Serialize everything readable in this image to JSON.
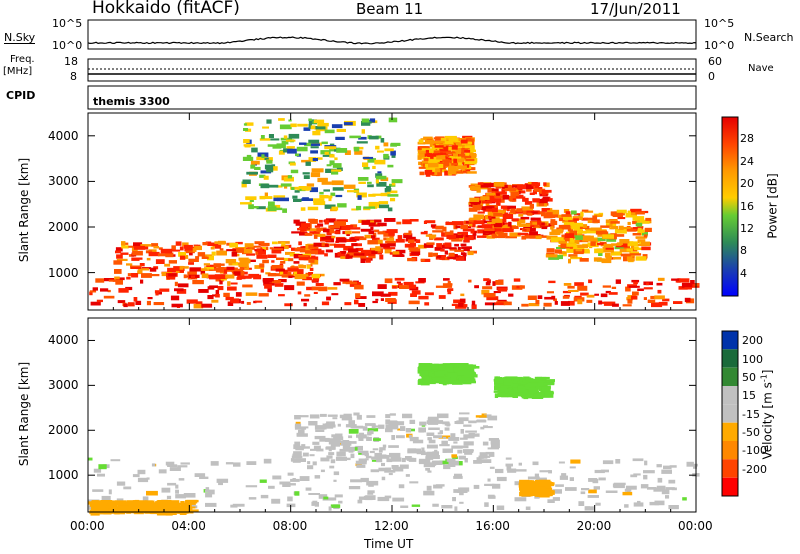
{
  "header": {
    "station": "Hokkaido (fitACF)",
    "beam": "Beam 11",
    "date": "17/Jun/2011"
  },
  "summary_panels": {
    "nsky_label": "N.Sky",
    "nsearch_label": "N.Search",
    "freq_label": "Freq.",
    "freq_unit": "[MHz]",
    "nave_label": "Nave",
    "cpid_label": "CPID",
    "cpid_value": "themis 3300",
    "left_ticks_top": [
      "10^5",
      "10^0"
    ],
    "right_ticks_top": [
      "10^5",
      "10^0"
    ],
    "left_ticks_freq": [
      "18",
      "8"
    ],
    "right_ticks_freq": [
      "60",
      "0"
    ]
  },
  "colors": {
    "power_scale": [
      "#0000ff",
      "#1a3fb0",
      "#2e8b57",
      "#66cc33",
      "#ffcc00",
      "#ff9900",
      "#ff5500",
      "#ff2200",
      "#e60000"
    ],
    "velocity_scale": [
      "#ff0000",
      "#ff4400",
      "#ff8800",
      "#ffaa00",
      "#c0c0c0",
      "#c0c0c0",
      "#66dd33",
      "#338833",
      "#0033aa"
    ],
    "ground_scatter": "#c0c0c0"
  },
  "chart_data": [
    {
      "type": "heatmap",
      "title": "Power",
      "colorbar_label": "Power [dB]",
      "colorbar_ticks": [
        "4",
        "8",
        "12",
        "16",
        "20",
        "24",
        "28"
      ],
      "xlabel": "",
      "ylabel": "Slant Range [km]",
      "x_ticks": [
        "00:00",
        "04:00",
        "08:00",
        "12:00",
        "16:00",
        "20:00",
        "00:00"
      ],
      "y_ticks": [
        "1000",
        "2000",
        "3000",
        "4000"
      ],
      "xlim_hours": [
        0,
        24
      ],
      "ylim_km": [
        180,
        4500
      ],
      "scatter_bands": [
        {
          "t": [
            0,
            24
          ],
          "r": [
            300,
            900
          ],
          "level": 28
        },
        {
          "t": [
            1,
            9
          ],
          "r": [
            900,
            1700
          ],
          "level": 24
        },
        {
          "t": [
            8,
            15
          ],
          "r": [
            1300,
            2200
          ],
          "level": 28
        },
        {
          "t": [
            13,
            15
          ],
          "r": [
            3200,
            4000
          ],
          "level": 22
        },
        {
          "t": [
            15,
            18
          ],
          "r": [
            1800,
            3000
          ],
          "level": 26
        },
        {
          "t": [
            18,
            22
          ],
          "r": [
            1300,
            2400
          ],
          "level": 20
        },
        {
          "t": [
            6,
            12
          ],
          "r": [
            2400,
            4400
          ],
          "level": 12
        }
      ]
    },
    {
      "type": "heatmap",
      "title": "Velocity",
      "colorbar_label": "Velocity [m s^-1]",
      "colorbar_ticks": [
        "200",
        "100",
        "50",
        "15",
        "-15",
        "-50",
        "-100",
        "-200"
      ],
      "xlabel": "Time UT",
      "ylabel": "Slant Range [km]",
      "x_ticks": [
        "00:00",
        "04:00",
        "08:00",
        "12:00",
        "16:00",
        "20:00",
        "00:00"
      ],
      "y_ticks": [
        "1000",
        "2000",
        "3000",
        "4000"
      ],
      "xlim_hours": [
        0,
        24
      ],
      "ylim_km": [
        180,
        4500
      ],
      "scatter_bands": [
        {
          "t": [
            0,
            24
          ],
          "r": [
            300,
            1400
          ],
          "value": 0
        },
        {
          "t": [
            8,
            16
          ],
          "r": [
            1300,
            2400
          ],
          "value": 0
        },
        {
          "t": [
            13,
            15
          ],
          "r": [
            3100,
            3500
          ],
          "value": 60
        },
        {
          "t": [
            16,
            18
          ],
          "r": [
            2800,
            3200
          ],
          "value": 40
        },
        {
          "t": [
            17,
            18
          ],
          "r": [
            600,
            900
          ],
          "value": -60
        },
        {
          "t": [
            0,
            4
          ],
          "r": [
            200,
            450
          ],
          "value": -60
        }
      ]
    }
  ]
}
